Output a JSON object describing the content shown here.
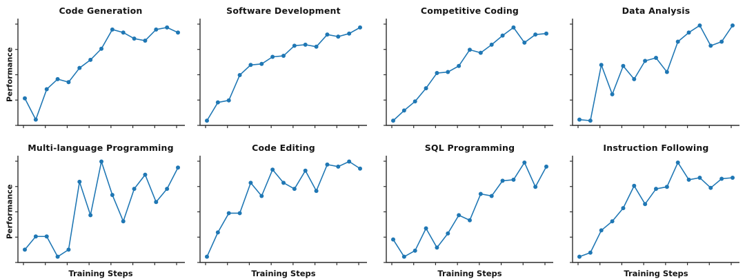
{
  "figure": {
    "line_color": "#1f77b4",
    "marker_color": "#1f77b4",
    "axis_color": "#2b2b2b",
    "background_color": "#ffffff"
  },
  "chart_data": [
    {
      "type": "line",
      "title": "Code Generation",
      "xlabel": "",
      "ylabel": "Performance",
      "x": [
        1,
        2,
        3,
        4,
        5,
        6,
        7,
        8,
        9,
        10,
        11,
        12,
        13,
        14,
        15
      ],
      "values": [
        0.26,
        0.05,
        0.35,
        0.45,
        0.42,
        0.56,
        0.64,
        0.75,
        0.94,
        0.91,
        0.85,
        0.83,
        0.94,
        0.96,
        0.91
      ],
      "ylim": [
        0,
        1
      ],
      "grid": false,
      "tick_labels_visible": false
    },
    {
      "type": "line",
      "title": "Software Development",
      "xlabel": "",
      "ylabel": "",
      "x": [
        1,
        2,
        3,
        4,
        5,
        6,
        7,
        8,
        9,
        10,
        11,
        12,
        13,
        14,
        15
      ],
      "values": [
        0.04,
        0.22,
        0.24,
        0.49,
        0.59,
        0.6,
        0.67,
        0.68,
        0.78,
        0.79,
        0.77,
        0.89,
        0.87,
        0.9,
        0.96
      ],
      "ylim": [
        0,
        1
      ],
      "grid": false,
      "tick_labels_visible": false
    },
    {
      "type": "line",
      "title": "Competitive Coding",
      "xlabel": "",
      "ylabel": "",
      "x": [
        1,
        2,
        3,
        4,
        5,
        6,
        7,
        8,
        9,
        10,
        11,
        12,
        13,
        14,
        15
      ],
      "values": [
        0.04,
        0.14,
        0.23,
        0.36,
        0.51,
        0.52,
        0.58,
        0.74,
        0.71,
        0.79,
        0.88,
        0.96,
        0.81,
        0.89,
        0.9
      ],
      "ylim": [
        0,
        1
      ],
      "grid": false,
      "tick_labels_visible": false
    },
    {
      "type": "line",
      "title": "Data Analysis",
      "xlabel": "",
      "ylabel": "",
      "x": [
        1,
        2,
        3,
        4,
        5,
        6,
        7,
        8,
        9,
        10,
        11,
        12,
        13,
        14,
        15
      ],
      "values": [
        0.05,
        0.04,
        0.59,
        0.3,
        0.58,
        0.45,
        0.63,
        0.66,
        0.52,
        0.82,
        0.91,
        0.98,
        0.78,
        0.82,
        0.98
      ],
      "ylim": [
        0,
        1
      ],
      "grid": false,
      "tick_labels_visible": false
    },
    {
      "type": "line",
      "title": "Multi-language Programming",
      "xlabel": "Training Steps",
      "ylabel": "Performance",
      "x": [
        1,
        2,
        3,
        4,
        5,
        6,
        7,
        8,
        9,
        10,
        11,
        12,
        13,
        14,
        15
      ],
      "values": [
        0.12,
        0.25,
        0.25,
        0.05,
        0.12,
        0.79,
        0.46,
        0.99,
        0.66,
        0.4,
        0.72,
        0.86,
        0.59,
        0.72,
        0.93
      ],
      "ylim": [
        0,
        1
      ],
      "grid": false,
      "tick_labels_visible": false
    },
    {
      "type": "line",
      "title": "Code Editing",
      "xlabel": "Training Steps",
      "ylabel": "",
      "x": [
        1,
        2,
        3,
        4,
        5,
        6,
        7,
        8,
        9,
        10,
        11,
        12,
        13,
        14,
        15
      ],
      "values": [
        0.05,
        0.29,
        0.48,
        0.48,
        0.78,
        0.65,
        0.91,
        0.78,
        0.72,
        0.9,
        0.7,
        0.96,
        0.94,
        0.99,
        0.92
      ],
      "ylim": [
        0,
        1
      ],
      "grid": false,
      "tick_labels_visible": false
    },
    {
      "type": "line",
      "title": "SQL Programming",
      "xlabel": "Training Steps",
      "ylabel": "",
      "x": [
        1,
        2,
        3,
        4,
        5,
        6,
        7,
        8,
        9,
        10,
        11,
        12,
        13,
        14,
        15
      ],
      "values": [
        0.22,
        0.05,
        0.11,
        0.33,
        0.14,
        0.28,
        0.46,
        0.41,
        0.67,
        0.65,
        0.8,
        0.81,
        0.98,
        0.74,
        0.94
      ],
      "ylim": [
        0,
        1
      ],
      "grid": false,
      "tick_labels_visible": false
    },
    {
      "type": "line",
      "title": "Instruction Following",
      "xlabel": "Training Steps",
      "ylabel": "",
      "x": [
        1,
        2,
        3,
        4,
        5,
        6,
        7,
        8,
        9,
        10,
        11,
        12,
        13,
        14,
        15
      ],
      "values": [
        0.05,
        0.09,
        0.31,
        0.4,
        0.53,
        0.75,
        0.57,
        0.72,
        0.74,
        0.98,
        0.81,
        0.83,
        0.73,
        0.82,
        0.83
      ],
      "ylim": [
        0,
        1
      ],
      "grid": false,
      "tick_labels_visible": false
    }
  ]
}
